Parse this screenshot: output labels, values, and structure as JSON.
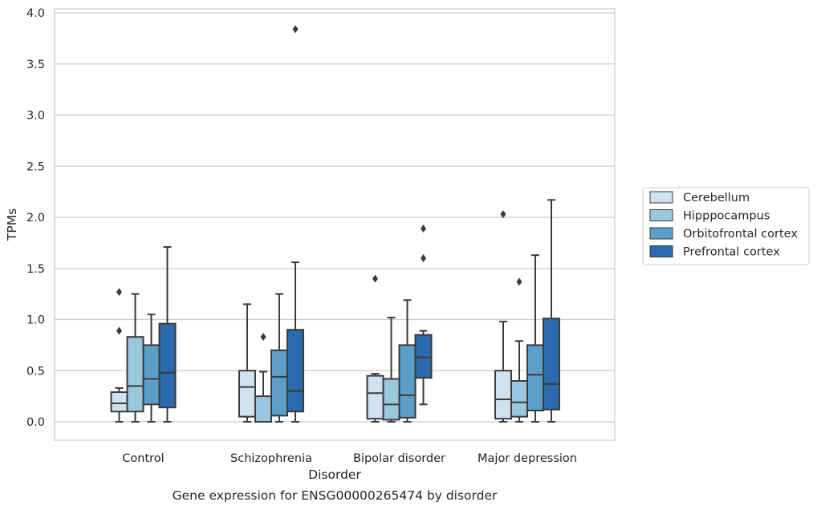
{
  "chart_data": {
    "type": "box",
    "caption": "Gene expression for ENSG00000265474 by disorder",
    "xlabel": "Disorder",
    "ylabel": "TPMs",
    "ylim": [
      -0.18,
      4.05
    ],
    "yticks": [
      0.0,
      0.5,
      1.0,
      1.5,
      2.0,
      2.5,
      3.0,
      3.5,
      4.0
    ],
    "ytick_labels": [
      "0.0",
      "0.5",
      "1.0",
      "1.5",
      "2.0",
      "2.5",
      "3.0",
      "3.5",
      "4.0"
    ],
    "grid": "horizontal",
    "legend_position": "right",
    "categories": [
      "Control",
      "Schizophrenia",
      "Bipolar disorder",
      "Major depression"
    ],
    "series": [
      {
        "name": "Cerebellum",
        "color": "#d0e2f2",
        "boxes": [
          {
            "whislo": 0.0,
            "q1": 0.1,
            "med": 0.18,
            "q3": 0.29,
            "whishi": 0.33,
            "fliers": [
              0.89,
              1.27
            ]
          },
          {
            "whislo": 0.0,
            "q1": 0.05,
            "med": 0.34,
            "q3": 0.5,
            "whishi": 1.15,
            "fliers": []
          },
          {
            "whislo": 0.0,
            "q1": 0.03,
            "med": 0.28,
            "q3": 0.45,
            "whishi": 0.47,
            "fliers": [
              1.4
            ]
          },
          {
            "whislo": 0.0,
            "q1": 0.03,
            "med": 0.22,
            "q3": 0.5,
            "whishi": 0.98,
            "fliers": [
              2.03
            ]
          }
        ]
      },
      {
        "name": "Hipppocampus",
        "color": "#9ac6e0",
        "boxes": [
          {
            "whislo": 0.0,
            "q1": 0.1,
            "med": 0.35,
            "q3": 0.83,
            "whishi": 1.25,
            "fliers": []
          },
          {
            "whislo": 0.0,
            "q1": 0.0,
            "med": 0.0,
            "q3": 0.25,
            "whishi": 0.49,
            "fliers": [
              0.83
            ]
          },
          {
            "whislo": 0.0,
            "q1": 0.02,
            "med": 0.17,
            "q3": 0.42,
            "whishi": 1.02,
            "fliers": []
          },
          {
            "whislo": 0.0,
            "q1": 0.05,
            "med": 0.19,
            "q3": 0.4,
            "whishi": 0.79,
            "fliers": [
              1.37
            ]
          }
        ]
      },
      {
        "name": "Orbitofrontal cortex",
        "color": "#5a9ec9",
        "boxes": [
          {
            "whislo": 0.0,
            "q1": 0.17,
            "med": 0.42,
            "q3": 0.75,
            "whishi": 1.05,
            "fliers": []
          },
          {
            "whislo": 0.0,
            "q1": 0.06,
            "med": 0.44,
            "q3": 0.7,
            "whishi": 1.25,
            "fliers": []
          },
          {
            "whislo": 0.0,
            "q1": 0.04,
            "med": 0.26,
            "q3": 0.75,
            "whishi": 1.19,
            "fliers": []
          },
          {
            "whislo": 0.0,
            "q1": 0.11,
            "med": 0.46,
            "q3": 0.75,
            "whishi": 1.63,
            "fliers": []
          }
        ]
      },
      {
        "name": "Prefrontal cortex",
        "color": "#2a6aad",
        "boxes": [
          {
            "whislo": 0.0,
            "q1": 0.14,
            "med": 0.48,
            "q3": 0.96,
            "whishi": 1.71,
            "fliers": []
          },
          {
            "whislo": 0.0,
            "q1": 0.1,
            "med": 0.3,
            "q3": 0.9,
            "whishi": 1.56,
            "fliers": [
              3.84
            ]
          },
          {
            "whislo": 0.17,
            "q1": 0.43,
            "med": 0.63,
            "q3": 0.85,
            "whishi": 0.89,
            "fliers": [
              1.6,
              1.89
            ]
          },
          {
            "whislo": 0.0,
            "q1": 0.12,
            "med": 0.37,
            "q3": 1.01,
            "whishi": 2.17,
            "fliers": []
          }
        ]
      }
    ]
  }
}
